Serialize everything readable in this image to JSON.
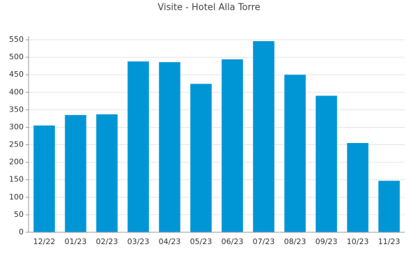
{
  "chart_data": {
    "type": "bar",
    "title": "Visite - Hotel Alla Torre",
    "categories": [
      "12/22",
      "01/23",
      "02/23",
      "03/23",
      "04/23",
      "05/23",
      "06/23",
      "07/23",
      "08/23",
      "09/23",
      "10/23",
      "11/23"
    ],
    "values": [
      305,
      335,
      337,
      488,
      486,
      424,
      494,
      546,
      450,
      390,
      255,
      147
    ],
    "color": "#0096d6",
    "ylim": [
      0,
      550
    ],
    "yticks": [
      0,
      50,
      100,
      150,
      200,
      250,
      300,
      350,
      400,
      450,
      500,
      550
    ],
    "grid": true
  }
}
